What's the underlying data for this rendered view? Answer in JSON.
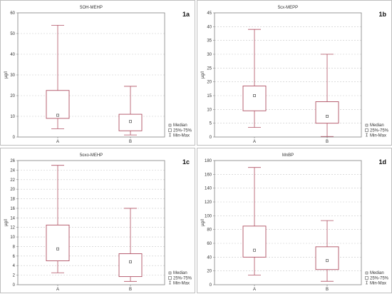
{
  "legend": {
    "median": "Median",
    "iqr": "25%-75%",
    "range": "Min-Max"
  },
  "chart_data": [
    {
      "type": "box",
      "panel_label": "1a",
      "title": "5OH-MEHP",
      "ylabel": "µg/l",
      "ylim": [
        0,
        60
      ],
      "yticks": [
        0,
        10,
        20,
        30,
        40,
        50,
        60
      ],
      "categories": [
        "A",
        "B"
      ],
      "boxes": [
        {
          "category": "A",
          "min": 4,
          "q1": 9,
          "median": 10.5,
          "q3": 22.5,
          "max": 54
        },
        {
          "category": "B",
          "min": 1,
          "q1": 3,
          "median": 7.5,
          "q3": 11,
          "max": 24.5
        }
      ],
      "grid": true,
      "legend_position": "bottom-right"
    },
    {
      "type": "box",
      "panel_label": "1b",
      "title": "5cx-MEPP",
      "ylabel": "µg/l",
      "ylim": [
        0,
        45
      ],
      "yticks": [
        0,
        5,
        10,
        15,
        20,
        25,
        30,
        35,
        40,
        45
      ],
      "categories": [
        "A",
        "B"
      ],
      "boxes": [
        {
          "category": "A",
          "min": 3.5,
          "q1": 9.5,
          "median": 15,
          "q3": 18.5,
          "max": 39
        },
        {
          "category": "B",
          "min": 0.2,
          "q1": 5,
          "median": 7.5,
          "q3": 12.8,
          "max": 30
        }
      ],
      "grid": true,
      "legend_position": "bottom-right"
    },
    {
      "type": "box",
      "panel_label": "1c",
      "title": "5oxo-MEHP",
      "ylabel": "µg/l",
      "ylim": [
        0,
        26
      ],
      "yticks": [
        0,
        2,
        4,
        6,
        8,
        10,
        12,
        14,
        16,
        18,
        20,
        22,
        24,
        26
      ],
      "categories": [
        "A",
        "B"
      ],
      "boxes": [
        {
          "category": "A",
          "min": 2.5,
          "q1": 5,
          "median": 7.5,
          "q3": 12.5,
          "max": 25
        },
        {
          "category": "B",
          "min": 0.7,
          "q1": 1.7,
          "median": 4.8,
          "q3": 6.5,
          "max": 16
        }
      ],
      "grid": true,
      "legend_position": "bottom-right"
    },
    {
      "type": "box",
      "panel_label": "1d",
      "title": "MnBP",
      "ylabel": "µg/l",
      "ylim": [
        0,
        180
      ],
      "yticks": [
        0,
        20,
        40,
        60,
        80,
        100,
        120,
        140,
        160,
        180
      ],
      "categories": [
        "A",
        "B"
      ],
      "boxes": [
        {
          "category": "A",
          "min": 14,
          "q1": 40,
          "median": 50,
          "q3": 85,
          "max": 170
        },
        {
          "category": "B",
          "min": 5,
          "q1": 22,
          "median": 35,
          "q3": 55,
          "max": 93
        }
      ],
      "grid": true,
      "legend_position": "bottom-right"
    }
  ]
}
